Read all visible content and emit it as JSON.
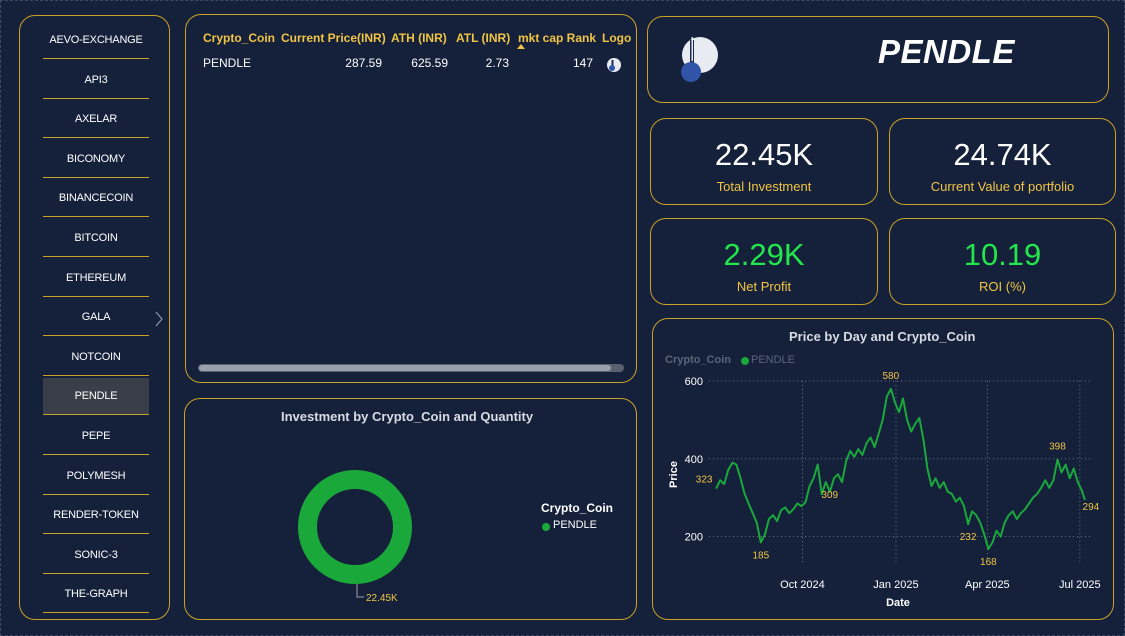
{
  "slicer": {
    "items": [
      {
        "label": "AEVO-EXCHANGE",
        "selected": false
      },
      {
        "label": "API3",
        "selected": false
      },
      {
        "label": "AXELAR",
        "selected": false
      },
      {
        "label": "BICONOMY",
        "selected": false
      },
      {
        "label": "BINANCECOIN",
        "selected": false
      },
      {
        "label": "BITCOIN",
        "selected": false
      },
      {
        "label": "ETHEREUM",
        "selected": false
      },
      {
        "label": "GALA",
        "selected": false
      },
      {
        "label": "NOTCOIN",
        "selected": false
      },
      {
        "label": "PENDLE",
        "selected": true
      },
      {
        "label": "PEPE",
        "selected": false
      },
      {
        "label": "POLYMESH",
        "selected": false
      },
      {
        "label": "RENDER-TOKEN",
        "selected": false
      },
      {
        "label": "SONIC-3",
        "selected": false
      },
      {
        "label": "THE-GRAPH",
        "selected": false
      }
    ]
  },
  "table": {
    "headers": [
      "Crypto_Coin",
      "Current Price(INR)",
      "ATH (INR)",
      "ATL (INR)",
      "mkt cap Rank",
      "Logo"
    ],
    "rows": [
      {
        "coin": "PENDLE",
        "price": "287.59",
        "ath": "625.59",
        "atl": "2.73",
        "rank": "147",
        "logo_icon": "pendle-logo-icon"
      }
    ]
  },
  "header": {
    "title": "PENDLE",
    "logo_icon": "pendle-logo-icon"
  },
  "cards": {
    "total_investment": {
      "value": "22.45K",
      "label": "Total Investment"
    },
    "current_value": {
      "value": "24.74K",
      "label": "Current Value of portfolio"
    },
    "net_profit": {
      "value": "2.29K",
      "label": "Net Profit"
    },
    "roi": {
      "value": "10.19",
      "label": "ROI (%)"
    }
  },
  "colors": {
    "accent_gold": "#c9a227",
    "header_gold": "#f0c544",
    "series_green": "#1aa83a",
    "kpi_green": "#22e64b",
    "background": "#15203a"
  },
  "chart_data": [
    {
      "type": "pie",
      "title": "Investment by Crypto_Coin and Quantity",
      "legend_title": "Crypto_Coin",
      "legend_position": "right",
      "categories": [
        "PENDLE"
      ],
      "values": [
        22450
      ],
      "data_labels": [
        "22.45K"
      ]
    },
    {
      "type": "line",
      "title": "Price by Day and Crypto_Coin",
      "legend_title": "Crypto_Coin",
      "legend_position": "top-left",
      "xlabel": "Date",
      "ylabel": "Price",
      "ylim": [
        150,
        600
      ],
      "yticks": [
        200,
        400,
        600
      ],
      "xticks": [
        {
          "date": "2024-10-01",
          "label": "Oct 2024"
        },
        {
          "date": "2025-01-01",
          "label": "Jan 2025"
        },
        {
          "date": "2025-04-01",
          "label": "Apr 2025"
        },
        {
          "date": "2025-07-01",
          "label": "Jul 2025"
        }
      ],
      "grid": true,
      "series": [
        {
          "name": "PENDLE",
          "x": [
            "2024-07-08",
            "2024-07-12",
            "2024-07-16",
            "2024-07-20",
            "2024-07-24",
            "2024-07-28",
            "2024-08-01",
            "2024-08-05",
            "2024-08-09",
            "2024-08-13",
            "2024-08-17",
            "2024-08-21",
            "2024-08-25",
            "2024-08-29",
            "2024-09-02",
            "2024-09-06",
            "2024-09-10",
            "2024-09-14",
            "2024-09-18",
            "2024-09-22",
            "2024-09-26",
            "2024-09-30",
            "2024-10-04",
            "2024-10-08",
            "2024-10-12",
            "2024-10-16",
            "2024-10-20",
            "2024-10-24",
            "2024-10-28",
            "2024-11-01",
            "2024-11-05",
            "2024-11-09",
            "2024-11-13",
            "2024-11-17",
            "2024-11-21",
            "2024-11-25",
            "2024-11-29",
            "2024-12-03",
            "2024-12-07",
            "2024-12-11",
            "2024-12-15",
            "2024-12-19",
            "2024-12-23",
            "2024-12-27",
            "2024-12-31",
            "2025-01-04",
            "2025-01-08",
            "2025-01-12",
            "2025-01-16",
            "2025-01-20",
            "2025-01-24",
            "2025-01-28",
            "2025-02-01",
            "2025-02-05",
            "2025-02-09",
            "2025-02-13",
            "2025-02-17",
            "2025-02-21",
            "2025-02-25",
            "2025-03-01",
            "2025-03-05",
            "2025-03-09",
            "2025-03-13",
            "2025-03-17",
            "2025-03-21",
            "2025-03-25",
            "2025-03-29",
            "2025-04-02",
            "2025-04-06",
            "2025-04-10",
            "2025-04-14",
            "2025-04-18",
            "2025-04-22",
            "2025-04-26",
            "2025-04-30",
            "2025-05-04",
            "2025-05-08",
            "2025-05-12",
            "2025-05-16",
            "2025-05-20",
            "2025-05-24",
            "2025-05-28",
            "2025-06-01",
            "2025-06-05",
            "2025-06-09",
            "2025-06-13",
            "2025-06-17",
            "2025-06-21",
            "2025-06-25",
            "2025-06-29",
            "2025-07-03",
            "2025-07-06"
          ],
          "values": [
            323,
            345,
            335,
            372,
            390,
            385,
            350,
            310,
            285,
            260,
            235,
            185,
            205,
            245,
            255,
            240,
            268,
            275,
            260,
            270,
            285,
            278,
            288,
            330,
            350,
            385,
            309,
            340,
            315,
            350,
            360,
            340,
            395,
            420,
            405,
            425,
            410,
            440,
            455,
            430,
            465,
            500,
            560,
            580,
            545,
            520,
            555,
            500,
            470,
            490,
            505,
            450,
            375,
            330,
            350,
            325,
            340,
            315,
            310,
            290,
            300,
            278,
            232,
            265,
            255,
            235,
            205,
            168,
            185,
            215,
            200,
            235,
            255,
            265,
            245,
            260,
            270,
            285,
            300,
            310,
            325,
            345,
            325,
            345,
            398,
            365,
            385,
            350,
            375,
            340,
            318,
            294
          ]
        }
      ],
      "annotations": [
        "323",
        "185",
        "309",
        "580",
        "232",
        "168",
        "398",
        "294"
      ]
    }
  ]
}
